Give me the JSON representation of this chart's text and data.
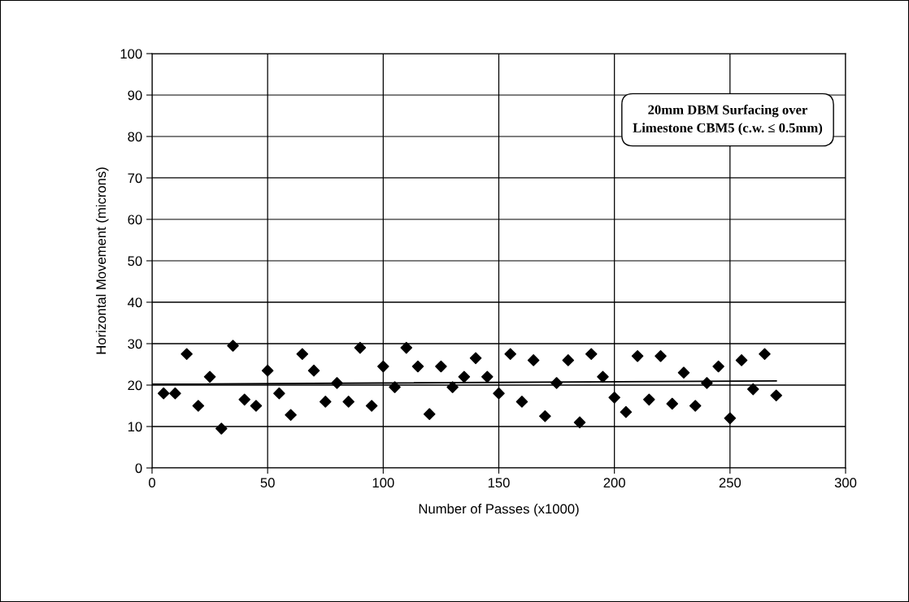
{
  "chart_data": {
    "type": "scatter",
    "xlabel": "Number of Passes (x1000)",
    "ylabel": "Horizontal Movement (microns)",
    "annotations": [
      "20mm DBM Surfacing over\nLimestone CBM5 (c.w. ≤ 0.5mm)"
    ],
    "x": [
      5,
      10,
      15,
      20,
      25,
      30,
      35,
      40,
      45,
      50,
      55,
      60,
      65,
      70,
      75,
      80,
      85,
      90,
      95,
      100,
      105,
      110,
      115,
      120,
      125,
      130,
      135,
      140,
      145,
      150,
      155,
      160,
      165,
      170,
      175,
      180,
      185,
      190,
      195,
      200,
      205,
      210,
      215,
      220,
      225,
      230,
      235,
      240,
      245,
      250,
      255,
      260,
      265,
      270
    ],
    "series": [
      {
        "color": "#000000",
        "marker": "diamond",
        "values": [
          18,
          18,
          27.5,
          15,
          22,
          9.5,
          29.5,
          16.5,
          15,
          23.5,
          18,
          12.8,
          27.5,
          23.5,
          16,
          20.5,
          16,
          29,
          15,
          24.5,
          19.5,
          29,
          24.5,
          13,
          24.5,
          19.5,
          22,
          26.5,
          22,
          18,
          27.5,
          16,
          26,
          12.5,
          20.5,
          26,
          11,
          27.5,
          22,
          17,
          13.5,
          27,
          16.5,
          27,
          15.5,
          23,
          15,
          20.5,
          24.5,
          12,
          26,
          19,
          27.5,
          17.5
        ]
      },
      {
        "type": "line",
        "color": "#000000",
        "x": [
          0,
          270
        ],
        "values": [
          20.2,
          21.0
        ]
      }
    ],
    "xlim": [
      0,
      300
    ],
    "xticks": [
      0,
      50,
      100,
      150,
      200,
      250,
      300
    ],
    "ylim": [
      0,
      100
    ],
    "yticks": [
      0,
      10,
      20,
      30,
      40,
      50,
      60,
      70,
      80,
      90,
      100
    ],
    "grid": true,
    "legend": false
  }
}
